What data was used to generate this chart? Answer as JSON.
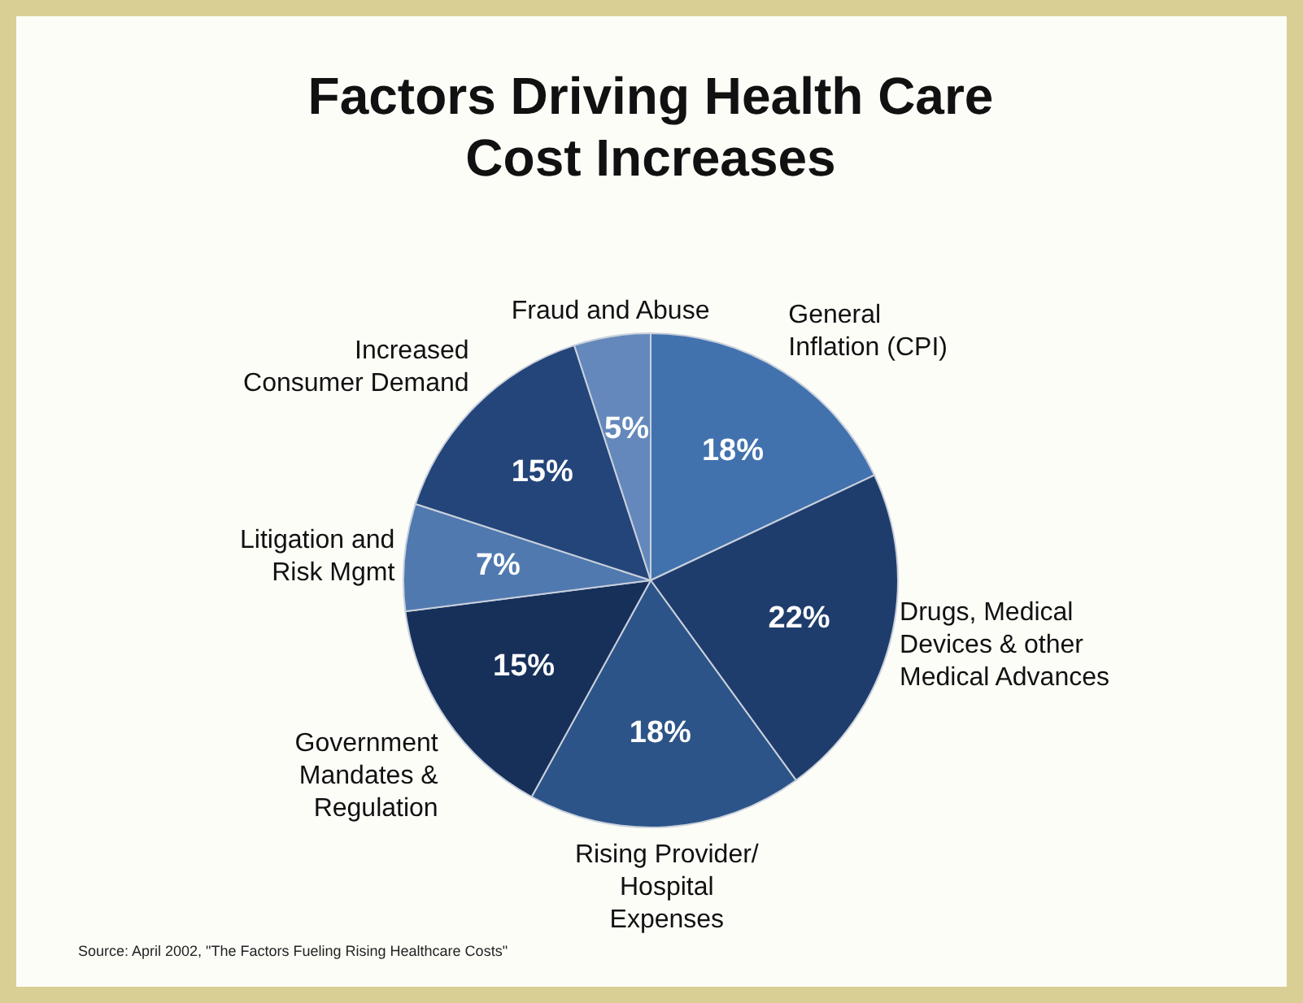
{
  "chart_data": {
    "type": "pie",
    "title": "Factors Driving Health Care Cost Increases",
    "categories": [
      "General Inflation (CPI)",
      "Drugs, Medical Devices & other Medical Advances",
      "Rising Provider/ Hospital Expenses",
      "Government Mandates & Regulation",
      "Litigation and Risk Mgmt",
      "Increased Consumer Demand",
      "Fraud and Abuse"
    ],
    "values": [
      18,
      22,
      18,
      15,
      7,
      15,
      5
    ],
    "colors": [
      "#4272ae",
      "#1f3d6c",
      "#2c5488",
      "#17305a",
      "#5079af",
      "#24457a",
      "#6488bb"
    ],
    "value_labels": [
      "18%",
      "22%",
      "18%",
      "15%",
      "7%",
      "15%",
      "5%"
    ],
    "annotations": [
      "Source: April 2002, \"The Factors Fueling Rising Healthcare Costs\""
    ]
  }
}
